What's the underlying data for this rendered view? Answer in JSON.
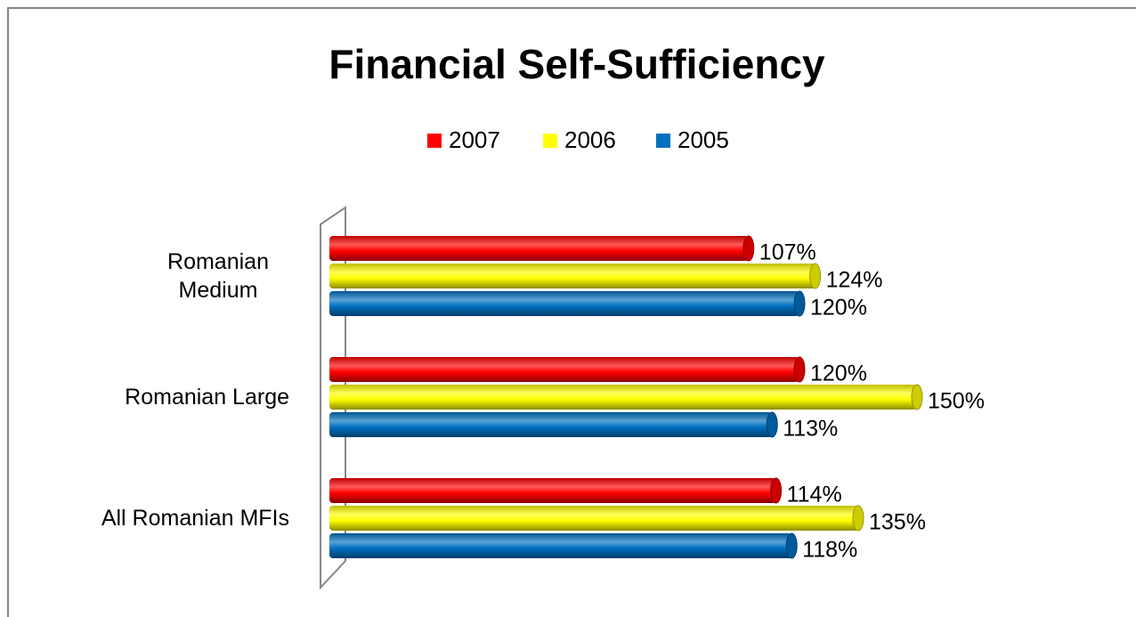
{
  "chart_data": {
    "type": "bar",
    "orientation": "horizontal",
    "title": "Financial  Self-Sufficiency",
    "categories": [
      "Romanian Medium",
      "Romanian Large",
      "All Romanian MFIs"
    ],
    "series": [
      {
        "name": "2007",
        "color": "#ff0000",
        "values": [
          107,
          120,
          114
        ],
        "value_labels": [
          "107%",
          "120%",
          "114%"
        ]
      },
      {
        "name": "2006",
        "color": "#ffff00",
        "values": [
          124,
          150,
          135
        ],
        "value_labels": [
          "124%",
          "150%",
          "135%"
        ]
      },
      {
        "name": "2005",
        "color": "#0070c0",
        "values": [
          120,
          113,
          118
        ],
        "value_labels": [
          "120%",
          "113%",
          "118%"
        ]
      }
    ],
    "legend": "top"
  }
}
